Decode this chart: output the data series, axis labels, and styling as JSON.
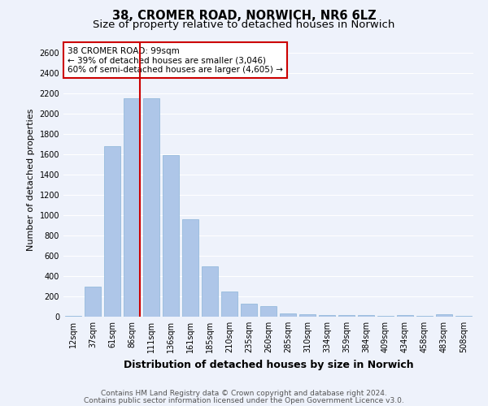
{
  "title": "38, CROMER ROAD, NORWICH, NR6 6LZ",
  "subtitle": "Size of property relative to detached houses in Norwich",
  "xlabel": "Distribution of detached houses by size in Norwich",
  "ylabel": "Number of detached properties",
  "categories": [
    "12sqm",
    "37sqm",
    "61sqm",
    "86sqm",
    "111sqm",
    "136sqm",
    "161sqm",
    "185sqm",
    "210sqm",
    "235sqm",
    "260sqm",
    "285sqm",
    "310sqm",
    "334sqm",
    "359sqm",
    "384sqm",
    "409sqm",
    "434sqm",
    "458sqm",
    "483sqm",
    "508sqm"
  ],
  "values": [
    10,
    295,
    1680,
    2150,
    2150,
    1590,
    960,
    500,
    245,
    130,
    105,
    35,
    25,
    20,
    20,
    15,
    10,
    15,
    5,
    25,
    5
  ],
  "bar_color": "#aec6e8",
  "bar_edge_color": "#8ab4d8",
  "vline_color": "#cc0000",
  "vline_index": 3,
  "annotation_text": "38 CROMER ROAD: 99sqm\n← 39% of detached houses are smaller (3,046)\n60% of semi-detached houses are larger (4,605) →",
  "annotation_box_color": "#ffffff",
  "annotation_box_edge": "#cc0000",
  "ylim": [
    0,
    2700
  ],
  "yticks": [
    0,
    200,
    400,
    600,
    800,
    1000,
    1200,
    1400,
    1600,
    1800,
    2000,
    2200,
    2400,
    2600
  ],
  "background_color": "#eef2fb",
  "grid_color": "#ffffff",
  "footer1": "Contains HM Land Registry data © Crown copyright and database right 2024.",
  "footer2": "Contains public sector information licensed under the Open Government Licence v3.0.",
  "title_fontsize": 10.5,
  "subtitle_fontsize": 9.5,
  "xlabel_fontsize": 9,
  "ylabel_fontsize": 8,
  "tick_fontsize": 7,
  "annotation_fontsize": 7.5,
  "footer_fontsize": 6.5
}
